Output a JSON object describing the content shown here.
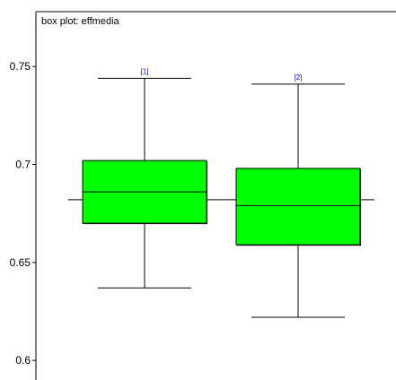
{
  "chart_data": {
    "type": "box",
    "title": "box plot: effmedia",
    "xlabel": "",
    "ylabel": "",
    "ylim": [
      0.59,
      0.778
    ],
    "yticks": [
      0.6,
      0.65,
      0.7,
      0.75
    ],
    "ytick_labels": [
      "0.6",
      "0.65",
      "0.7",
      "0.75"
    ],
    "overall_median": 0.682,
    "grid": false,
    "legend": "none",
    "box_color": "#00ff00",
    "index_label_color": "#0000cc",
    "boxes": [
      {
        "label": "[1]",
        "whisker_low": 0.637,
        "q1": 0.67,
        "median": 0.686,
        "q3": 0.702,
        "whisker_high": 0.744
      },
      {
        "label": "[2]",
        "whisker_low": 0.622,
        "q1": 0.659,
        "median": 0.679,
        "q3": 0.698,
        "whisker_high": 0.741
      }
    ]
  }
}
